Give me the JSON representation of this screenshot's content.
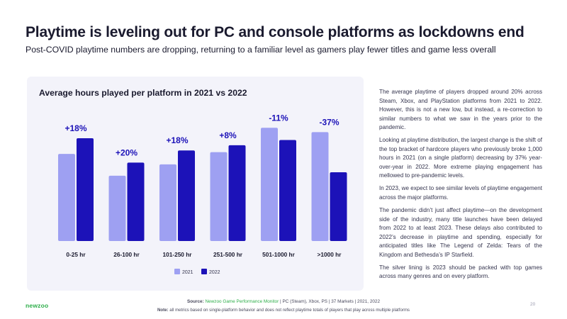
{
  "header": {
    "title": "Playtime is leveling out for PC and console platforms as lockdowns end",
    "subtitle": "Post-COVID playtime numbers are dropping, returning to a familiar level as gamers play fewer titles and game less overall"
  },
  "colors": {
    "series_2021": "#9ea0f2",
    "series_2022": "#1c12b8",
    "accent_text": "#1c12b8",
    "brand": "#2eae4a"
  },
  "chart_data": {
    "type": "bar",
    "title": "Average hours played per platform in 2021 vs 2022",
    "categories": [
      "0-25 hr",
      "26-100 hr",
      "101-250 hr",
      "251-500 hr",
      "501-1000 hr",
      ">1000 hr"
    ],
    "series": [
      {
        "name": "2021",
        "values": [
          100,
          75,
          88,
          102,
          130,
          125
        ]
      },
      {
        "name": "2022",
        "values": [
          118,
          90,
          104,
          110,
          116,
          79
        ]
      }
    ],
    "annotations": [
      "+18%",
      "+20%",
      "+18%",
      "+8%",
      "-11%",
      "-37%"
    ],
    "legend_position": "bottom-center",
    "ylim": [
      0,
      140
    ],
    "grid": false,
    "xlabel": "",
    "ylabel": ""
  },
  "body": {
    "paragraphs": [
      "The average playtime of players dropped around 20% across Steam, Xbox, and PlayStation platforms from 2021 to 2022. However, this is not a new low, but instead, a re-correction to similar numbers to what we saw in the years prior to the pandemic.",
      "Looking at playtime distribution, the largest change is the shift of the top bracket of hardcore players who previously broke 1,000 hours in 2021 (on a single platform) decreasing by 37% year-over-year in 2022. More extreme playing engagement has mellowed to pre-pandemic levels.",
      "In 2023, we expect to see similar levels of playtime engagement across the major platforms.",
      "The pandemic didn’t just affect playtime—on the development side of the industry, many title launches have been delayed from 2022 to at least 2023. These delays also contributed to 2022’s decrease in playtime and spending, especially for anticipated titles like The Legend of Zelda: Tears of the Kingdom and Bethesda’s IP Starfield.",
      "The silver lining is 2023 should be packed with top games across many genres and on every platform."
    ]
  },
  "footer": {
    "logo": "newzoo",
    "source_label": "Source:",
    "source_link": "Newzoo Game Performance Monitor",
    "source_rest": "| PC (Steam), Xbox, PS | 37 Markets | 2021, 2022",
    "note_label": "Note:",
    "note_text": "all metrics based on single-platform behavior and does not reflect playtime totals of players that play across multiple platforms",
    "page_number": "20"
  }
}
